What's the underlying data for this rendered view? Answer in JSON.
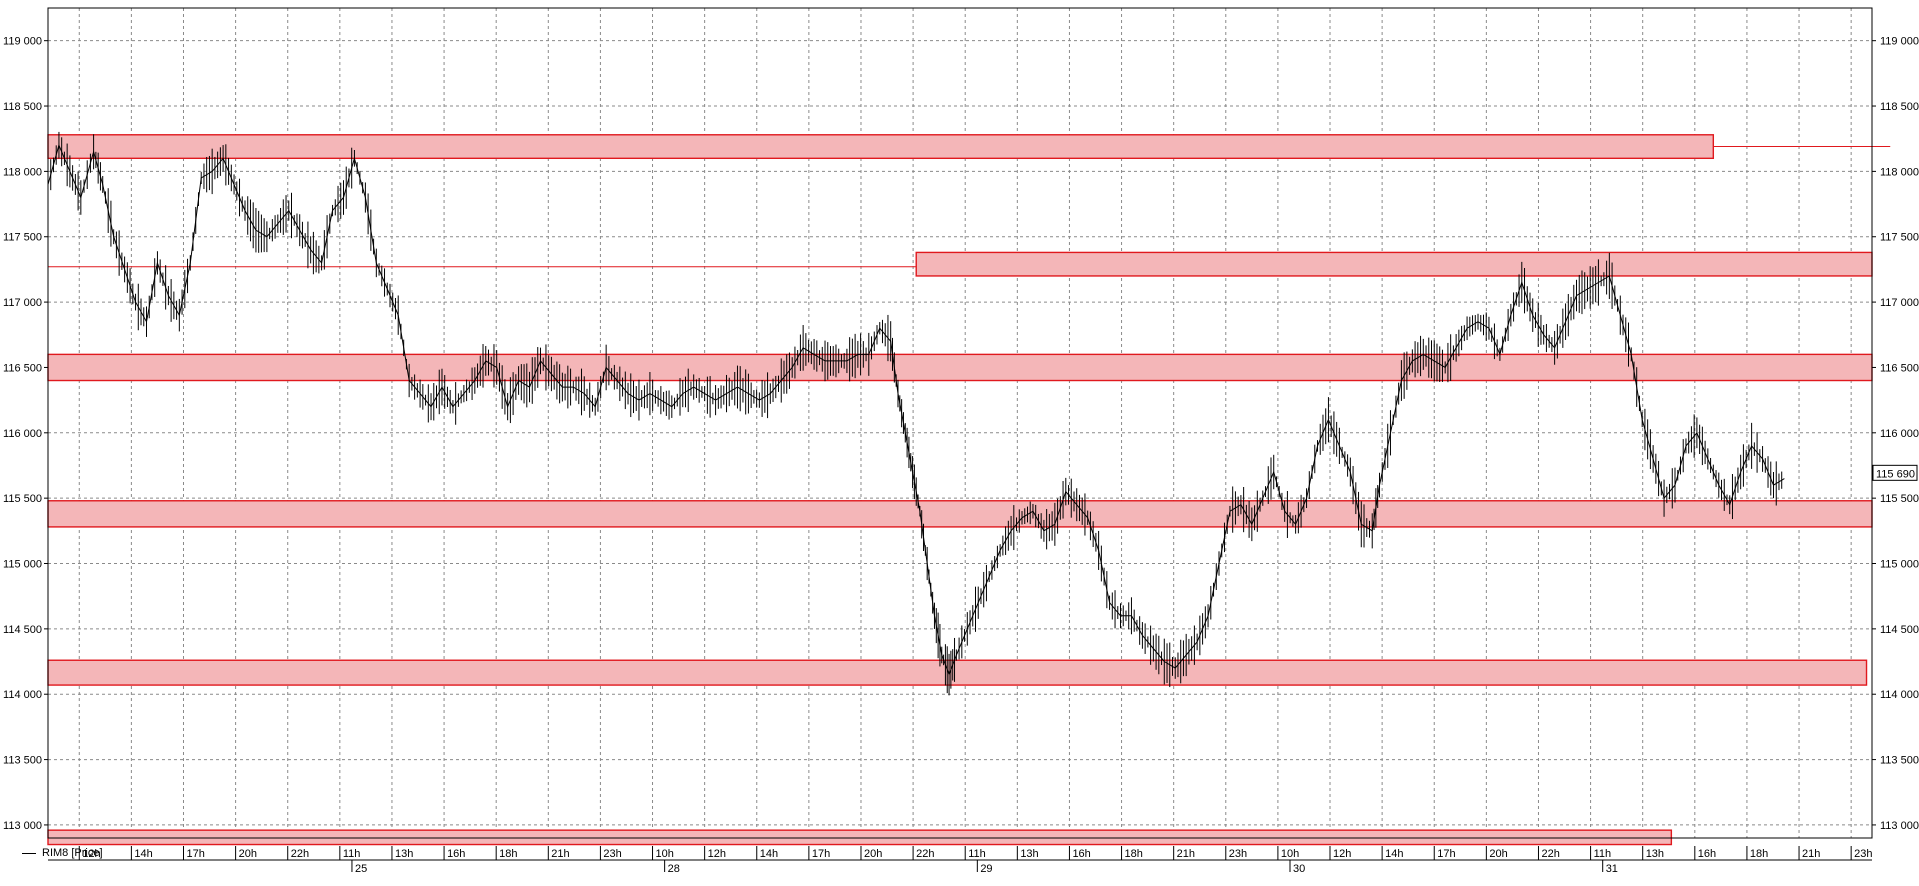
{
  "chart_data": {
    "type": "candlestick-line",
    "series": [
      {
        "name": "RIM8 [Price]"
      }
    ],
    "last_price": "115 690",
    "y_ticks": [
      "119 000",
      "118 500",
      "118 000",
      "117 500",
      "117 000",
      "116 500",
      "116 000",
      "115 500",
      "115 000",
      "114 500",
      "114 000",
      "113 500",
      "113 000"
    ],
    "ylim": [
      112900,
      119250
    ],
    "x_hour_ticks": [
      "12h",
      "14h",
      "17h",
      "20h",
      "22h",
      "11h",
      "13h",
      "16h",
      "18h",
      "21h",
      "23h",
      "10h",
      "12h",
      "14h",
      "17h",
      "20h",
      "22h",
      "11h",
      "13h",
      "16h",
      "18h",
      "21h",
      "23h",
      "10h",
      "12h",
      "14h",
      "17h",
      "20h",
      "22h",
      "11h",
      "13h",
      "16h",
      "18h",
      "21h",
      "23h"
    ],
    "x_day_ticks": [
      "25",
      "28",
      "29",
      "30",
      "31"
    ],
    "grid": true,
    "zones": [
      {
        "low": 118100,
        "high": 118280
      },
      {
        "low": 117200,
        "high": 117380
      },
      {
        "low": 116400,
        "high": 116600
      },
      {
        "low": 115280,
        "high": 115480
      },
      {
        "low": 114070,
        "high": 114260
      },
      {
        "low": 112850,
        "high": 112960
      }
    ],
    "levels": [
      118190,
      117270
    ],
    "price_path": [
      [
        0,
        117900
      ],
      [
        0.006,
        118200
      ],
      [
        0.012,
        118000
      ],
      [
        0.018,
        117800
      ],
      [
        0.025,
        118150
      ],
      [
        0.03,
        117900
      ],
      [
        0.036,
        117500
      ],
      [
        0.042,
        117250
      ],
      [
        0.048,
        117000
      ],
      [
        0.054,
        116850
      ],
      [
        0.06,
        117300
      ],
      [
        0.066,
        117050
      ],
      [
        0.072,
        116900
      ],
      [
        0.078,
        117300
      ],
      [
        0.084,
        117950
      ],
      [
        0.09,
        118000
      ],
      [
        0.096,
        118100
      ],
      [
        0.102,
        117900
      ],
      [
        0.108,
        117700
      ],
      [
        0.114,
        117550
      ],
      [
        0.12,
        117500
      ],
      [
        0.126,
        117600
      ],
      [
        0.132,
        117700
      ],
      [
        0.138,
        117550
      ],
      [
        0.144,
        117400
      ],
      [
        0.15,
        117300
      ],
      [
        0.156,
        117700
      ],
      [
        0.162,
        117800
      ],
      [
        0.168,
        118100
      ],
      [
        0.174,
        117800
      ],
      [
        0.18,
        117300
      ],
      [
        0.186,
        117100
      ],
      [
        0.192,
        116900
      ],
      [
        0.198,
        116400
      ],
      [
        0.204,
        116300
      ],
      [
        0.21,
        116200
      ],
      [
        0.216,
        116350
      ],
      [
        0.222,
        116200
      ],
      [
        0.228,
        116300
      ],
      [
        0.234,
        116400
      ],
      [
        0.24,
        116550
      ],
      [
        0.246,
        116500
      ],
      [
        0.252,
        116200
      ],
      [
        0.258,
        116400
      ],
      [
        0.264,
        116350
      ],
      [
        0.27,
        116550
      ],
      [
        0.276,
        116450
      ],
      [
        0.282,
        116350
      ],
      [
        0.288,
        116350
      ],
      [
        0.294,
        116300
      ],
      [
        0.3,
        116200
      ],
      [
        0.306,
        116500
      ],
      [
        0.312,
        116400
      ],
      [
        0.318,
        116300
      ],
      [
        0.324,
        116250
      ],
      [
        0.33,
        116300
      ],
      [
        0.336,
        116250
      ],
      [
        0.342,
        116200
      ],
      [
        0.348,
        116300
      ],
      [
        0.354,
        116350
      ],
      [
        0.36,
        116300
      ],
      [
        0.366,
        116250
      ],
      [
        0.372,
        116300
      ],
      [
        0.378,
        116350
      ],
      [
        0.384,
        116300
      ],
      [
        0.39,
        116250
      ],
      [
        0.396,
        116300
      ],
      [
        0.402,
        116400
      ],
      [
        0.408,
        116500
      ],
      [
        0.414,
        116650
      ],
      [
        0.42,
        116600
      ],
      [
        0.426,
        116550
      ],
      [
        0.432,
        116550
      ],
      [
        0.438,
        116550
      ],
      [
        0.444,
        116600
      ],
      [
        0.45,
        116600
      ],
      [
        0.456,
        116800
      ],
      [
        0.462,
        116700
      ],
      [
        0.466,
        116300
      ],
      [
        0.47,
        116000
      ],
      [
        0.474,
        115700
      ],
      [
        0.478,
        115400
      ],
      [
        0.482,
        115000
      ],
      [
        0.486,
        114600
      ],
      [
        0.49,
        114300
      ],
      [
        0.494,
        114150
      ],
      [
        0.498,
        114300
      ],
      [
        0.504,
        114500
      ],
      [
        0.51,
        114700
      ],
      [
        0.516,
        114900
      ],
      [
        0.522,
        115100
      ],
      [
        0.528,
        115250
      ],
      [
        0.534,
        115350
      ],
      [
        0.54,
        115400
      ],
      [
        0.546,
        115250
      ],
      [
        0.552,
        115300
      ],
      [
        0.558,
        115550
      ],
      [
        0.564,
        115450
      ],
      [
        0.57,
        115350
      ],
      [
        0.576,
        115100
      ],
      [
        0.582,
        114700
      ],
      [
        0.588,
        114600
      ],
      [
        0.594,
        114600
      ],
      [
        0.6,
        114450
      ],
      [
        0.606,
        114350
      ],
      [
        0.612,
        114250
      ],
      [
        0.618,
        114200
      ],
      [
        0.624,
        114300
      ],
      [
        0.63,
        114400
      ],
      [
        0.636,
        114600
      ],
      [
        0.642,
        115000
      ],
      [
        0.648,
        115400
      ],
      [
        0.654,
        115450
      ],
      [
        0.66,
        115300
      ],
      [
        0.666,
        115500
      ],
      [
        0.672,
        115700
      ],
      [
        0.678,
        115400
      ],
      [
        0.684,
        115300
      ],
      [
        0.69,
        115500
      ],
      [
        0.696,
        115900
      ],
      [
        0.702,
        116100
      ],
      [
        0.708,
        115900
      ],
      [
        0.714,
        115700
      ],
      [
        0.72,
        115300
      ],
      [
        0.726,
        115250
      ],
      [
        0.73,
        115600
      ],
      [
        0.736,
        116000
      ],
      [
        0.742,
        116400
      ],
      [
        0.748,
        116550
      ],
      [
        0.754,
        116600
      ],
      [
        0.76,
        116550
      ],
      [
        0.766,
        116500
      ],
      [
        0.772,
        116650
      ],
      [
        0.778,
        116800
      ],
      [
        0.784,
        116850
      ],
      [
        0.79,
        116800
      ],
      [
        0.796,
        116600
      ],
      [
        0.802,
        116900
      ],
      [
        0.808,
        117150
      ],
      [
        0.814,
        116900
      ],
      [
        0.82,
        116750
      ],
      [
        0.826,
        116650
      ],
      [
        0.832,
        116850
      ],
      [
        0.838,
        117050
      ],
      [
        0.844,
        117100
      ],
      [
        0.85,
        117150
      ],
      [
        0.856,
        117200
      ],
      [
        0.862,
        116900
      ],
      [
        0.868,
        116600
      ],
      [
        0.874,
        116100
      ],
      [
        0.88,
        115800
      ],
      [
        0.886,
        115500
      ],
      [
        0.892,
        115600
      ],
      [
        0.898,
        115900
      ],
      [
        0.904,
        116000
      ],
      [
        0.91,
        115800
      ],
      [
        0.916,
        115600
      ],
      [
        0.922,
        115450
      ],
      [
        0.928,
        115700
      ],
      [
        0.934,
        115900
      ],
      [
        0.94,
        115800
      ],
      [
        0.946,
        115600
      ],
      [
        0.952,
        115650
      ]
    ]
  }
}
